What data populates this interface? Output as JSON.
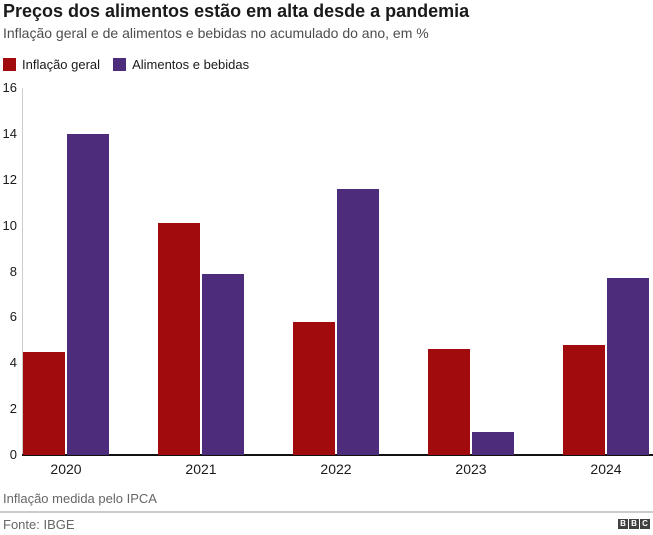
{
  "header": {
    "title": "Preços dos alimentos estão em alta desde a pandemia",
    "subtitle": "Inflação geral e de alimentos e bebidas no acumulado do ano, em %"
  },
  "chart_data": {
    "type": "bar",
    "categories": [
      "2020",
      "2021",
      "2022",
      "2023",
      "2024"
    ],
    "series": [
      {
        "name": "Inflação geral",
        "color": "#a10b0e",
        "values": [
          4.5,
          10.1,
          5.8,
          4.6,
          4.8
        ]
      },
      {
        "name": "Alimentos e bebidas",
        "color": "#4c2c7b",
        "values": [
          14.0,
          7.9,
          11.6,
          1.0,
          7.7
        ]
      }
    ],
    "ylim": [
      0,
      16
    ],
    "yticks": [
      0,
      2,
      4,
      6,
      8,
      10,
      12,
      14,
      16
    ],
    "grid": false,
    "legend_position": "top-left",
    "xlabel": "",
    "ylabel": ""
  },
  "footer": {
    "note": "Inflação medida pelo IPCA",
    "source": "Fonte: IBGE",
    "logo_letters": [
      "B",
      "B",
      "C"
    ]
  }
}
